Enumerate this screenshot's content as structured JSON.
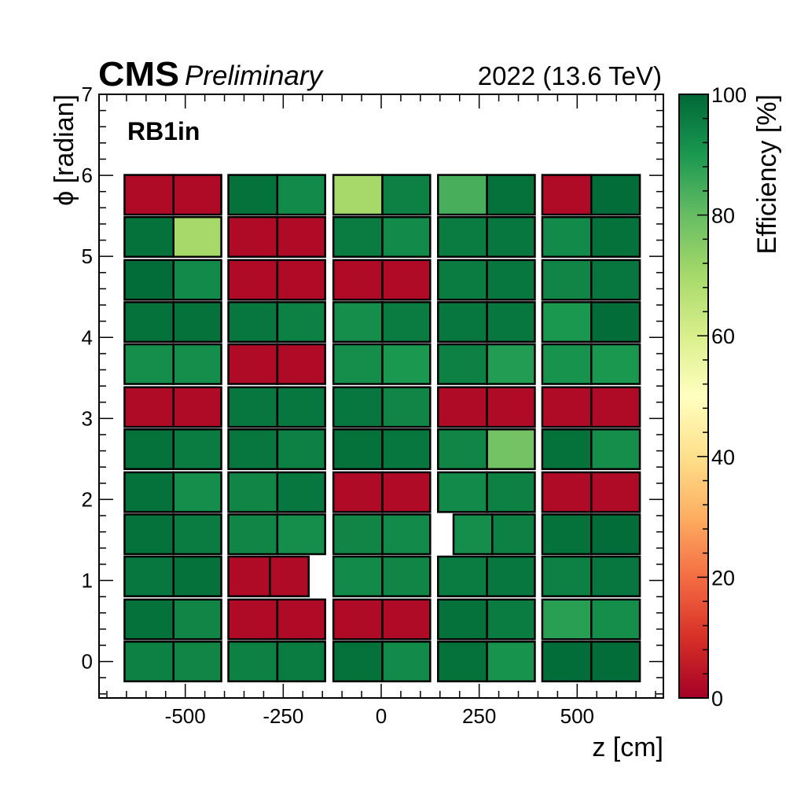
{
  "header": {
    "experiment": "CMS",
    "status": "Preliminary",
    "run_info": "2022 (13.6 TeV)"
  },
  "chart_data": {
    "type": "heatmap",
    "panel_label": "RB1in",
    "xlabel": "z [cm]",
    "ylabel": "ϕ [radian]",
    "xlim": [
      -720,
      720
    ],
    "ylim": [
      -0.45,
      7
    ],
    "x_ticks": [
      {
        "value": -500,
        "label": "-500"
      },
      {
        "value": -250,
        "label": "-250"
      },
      {
        "value": 0,
        "label": "0"
      },
      {
        "value": 250,
        "label": "250"
      },
      {
        "value": 500,
        "label": "500"
      }
    ],
    "y_ticks": [
      {
        "value": 0,
        "label": "0"
      },
      {
        "value": 1,
        "label": "1"
      },
      {
        "value": 2,
        "label": "2"
      },
      {
        "value": 3,
        "label": "3"
      },
      {
        "value": 4,
        "label": "4"
      },
      {
        "value": 5,
        "label": "5"
      },
      {
        "value": 6,
        "label": "6"
      },
      {
        "value": 7,
        "label": "7"
      }
    ],
    "colorbar": {
      "title": "Efficiency [%]",
      "range": [
        0,
        100
      ],
      "ticks": [
        {
          "value": 0,
          "label": "0"
        },
        {
          "value": 20,
          "label": "20"
        },
        {
          "value": 40,
          "label": "40"
        },
        {
          "value": 60,
          "label": "60"
        },
        {
          "value": 80,
          "label": "80"
        },
        {
          "value": 100,
          "label": "100"
        }
      ],
      "stops": [
        {
          "value": 0,
          "color": "#a50026"
        },
        {
          "value": 10,
          "color": "#d73027"
        },
        {
          "value": 20,
          "color": "#f46d43"
        },
        {
          "value": 30,
          "color": "#fdae61"
        },
        {
          "value": 40,
          "color": "#fee08b"
        },
        {
          "value": 50,
          "color": "#ffffbf"
        },
        {
          "value": 60,
          "color": "#d9ef8b"
        },
        {
          "value": 70,
          "color": "#a6d96a"
        },
        {
          "value": 80,
          "color": "#66bd63"
        },
        {
          "value": 90,
          "color": "#1a9850"
        },
        {
          "value": 100,
          "color": "#006837"
        }
      ]
    },
    "wheels": [
      {
        "z_min": -655,
        "z_mid": -530,
        "z_max": -408
      },
      {
        "z_min": -390,
        "z_mid": -265,
        "z_max": -143
      },
      {
        "z_min": -122,
        "z_mid": 3,
        "z_max": 125
      },
      {
        "z_min": 145,
        "z_mid": 270,
        "z_max": 392
      },
      {
        "z_min": 411,
        "z_mid": 536,
        "z_max": 660
      }
    ],
    "sectors": [
      {
        "phi": 0.0,
        "wheels": [
          [
            95,
            94
          ],
          [
            95,
            96
          ],
          [
            98,
            93
          ],
          [
            98,
            91
          ],
          [
            99,
            99
          ]
        ]
      },
      {
        "phi": 0.52,
        "wheels": [
          [
            98,
            94
          ],
          [
            2,
            2
          ],
          [
            2,
            2
          ],
          [
            98,
            96
          ],
          [
            88,
            92
          ]
        ]
      },
      {
        "phi": 1.05,
        "wheels": [
          [
            97,
            98
          ],
          [
            2,
            2,
            "short"
          ],
          [
            93,
            94
          ],
          [
            96,
            97
          ],
          [
            95,
            97
          ]
        ]
      },
      {
        "phi": 1.57,
        "wheels": [
          [
            98,
            96
          ],
          [
            94,
            92
          ],
          [
            94,
            93
          ],
          [
            null,
            92,
            95
          ],
          [
            98,
            99
          ]
        ]
      },
      {
        "phi": 2.09,
        "wheels": [
          [
            98,
            92
          ],
          [
            94,
            97
          ],
          [
            2,
            2
          ],
          [
            93,
            95
          ],
          [
            2,
            2
          ]
        ]
      },
      {
        "phi": 2.62,
        "wheels": [
          [
            98,
            96
          ],
          [
            97,
            95
          ],
          [
            98,
            97
          ],
          [
            94,
            78
          ],
          [
            98,
            92
          ]
        ]
      },
      {
        "phi": 3.14,
        "wheels": [
          [
            2,
            2
          ],
          [
            97,
            97
          ],
          [
            97,
            94
          ],
          [
            2,
            2
          ],
          [
            2,
            2
          ]
        ]
      },
      {
        "phi": 3.67,
        "wheels": [
          [
            92,
            92
          ],
          [
            2,
            2
          ],
          [
            92,
            90
          ],
          [
            95,
            89
          ],
          [
            91,
            90
          ]
        ]
      },
      {
        "phi": 4.19,
        "wheels": [
          [
            98,
            98
          ],
          [
            97,
            95
          ],
          [
            92,
            96
          ],
          [
            97,
            97
          ],
          [
            90,
            99
          ]
        ]
      },
      {
        "phi": 4.71,
        "wheels": [
          [
            99,
            93
          ],
          [
            2,
            2
          ],
          [
            2,
            2
          ],
          [
            96,
            97
          ],
          [
            94,
            97
          ]
        ]
      },
      {
        "phi": 5.24,
        "wheels": [
          [
            98,
            70
          ],
          [
            2,
            2
          ],
          [
            96,
            93
          ],
          [
            96,
            97
          ],
          [
            93,
            98
          ]
        ]
      },
      {
        "phi": 5.76,
        "wheels": [
          [
            2,
            2
          ],
          [
            98,
            93
          ],
          [
            70,
            95
          ],
          [
            84,
            98
          ],
          [
            2,
            99
          ]
        ]
      }
    ]
  }
}
